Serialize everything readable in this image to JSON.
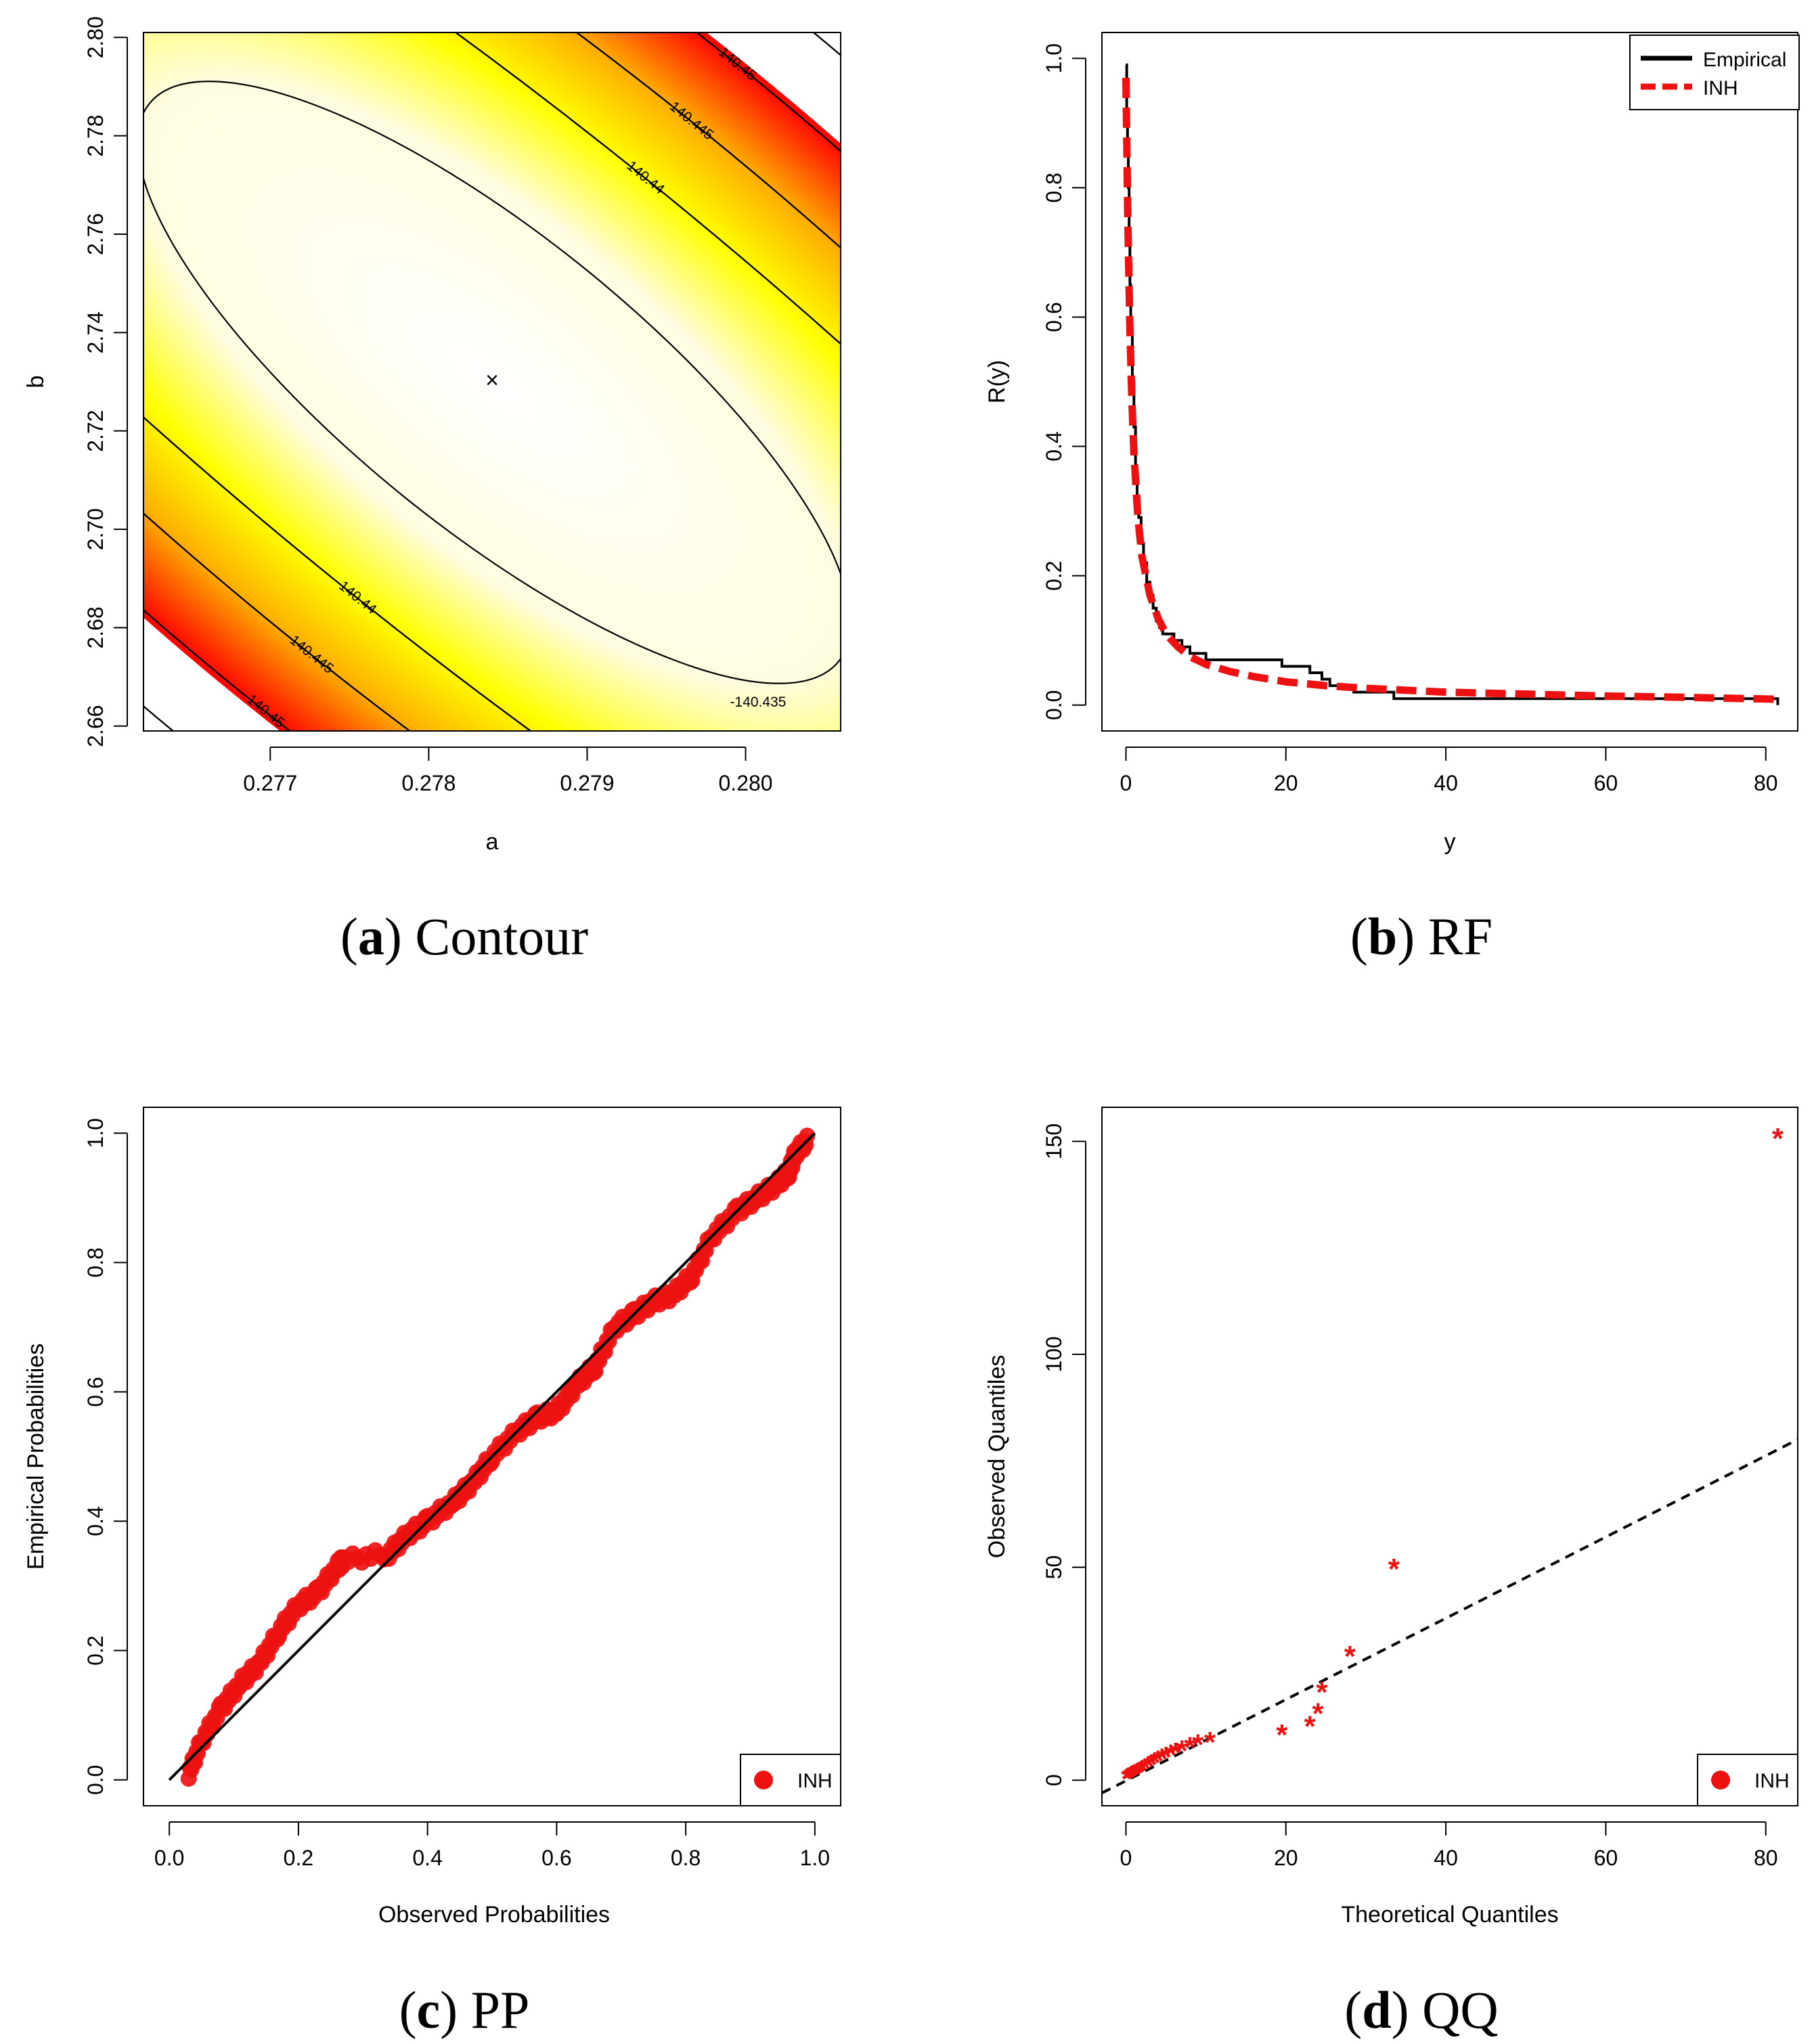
{
  "chart_data": [
    {
      "panel": "a",
      "type": "heatmap",
      "caption_letter": "a",
      "caption_text": "Contour",
      "xlabel": "a",
      "ylabel": "b",
      "xlim": [
        0.2762,
        0.2806
      ],
      "ylim": [
        2.659,
        2.801
      ],
      "xticks": [
        "0.277",
        "0.278",
        "0.279",
        "0.280"
      ],
      "yticks": [
        "2.66",
        "2.68",
        "2.70",
        "2.72",
        "2.74",
        "2.76",
        "2.78",
        "2.80"
      ],
      "mle_marker": "×",
      "mle_point": [
        0.2784,
        2.73
      ],
      "colors": {
        "low": "#ff0000",
        "mid": "#ffff00",
        "high": "#ffffff"
      },
      "contour_levels": [
        {
          "label": "-140.435",
          "ring": 0
        },
        {
          "label": "-140.44",
          "ring": 1
        },
        {
          "label": "-140.445",
          "ring": 2
        },
        {
          "label": "-140.45",
          "ring": 3
        },
        {
          "label": "-140.455",
          "ring": 4
        }
      ]
    },
    {
      "panel": "b",
      "type": "line",
      "caption_letter": "b",
      "caption_text": "RF",
      "xlabel": "y",
      "ylabel": "R(y)",
      "xlim": [
        -3,
        84
      ],
      "ylim": [
        -0.04,
        1.04
      ],
      "xticks": [
        0,
        20,
        40,
        60,
        80
      ],
      "yticks": [
        "0.0",
        "0.2",
        "0.4",
        "0.6",
        "0.8",
        "1.0"
      ],
      "legend": [
        "Empirical",
        "INH"
      ],
      "colors": {
        "empirical": "#000000",
        "inh": "#ee1111"
      },
      "series": [
        {
          "name": "Empirical",
          "style": "step",
          "x": [
            0,
            0.1,
            0.2,
            0.3,
            0.4,
            0.5,
            0.6,
            0.8,
            1.0,
            1.2,
            1.4,
            1.6,
            1.9,
            2.2,
            2.6,
            3.0,
            3.4,
            3.8,
            4.2,
            4.6,
            5.0,
            6.0,
            7.0,
            8.0,
            9.0,
            10.0,
            19.5,
            23.0,
            24.5,
            25.5,
            28.5,
            33.5,
            81.5
          ],
          "y": [
            0.99,
            0.92,
            0.86,
            0.8,
            0.72,
            0.65,
            0.58,
            0.5,
            0.43,
            0.37,
            0.32,
            0.29,
            0.25,
            0.22,
            0.19,
            0.17,
            0.15,
            0.13,
            0.12,
            0.11,
            0.11,
            0.1,
            0.09,
            0.08,
            0.08,
            0.07,
            0.06,
            0.05,
            0.04,
            0.03,
            0.02,
            0.01,
            0.0
          ]
        },
        {
          "name": "INH",
          "style": "dashed",
          "x": [
            0,
            0.25,
            0.5,
            0.75,
            1.0,
            1.5,
            2.0,
            3.0,
            4.0,
            5.0,
            6.5,
            8.0,
            10.0,
            13.0,
            16.0,
            20.0,
            25.0,
            30.0,
            40.0,
            50.0,
            60.0,
            70.0,
            81.5
          ],
          "y": [
            0.97,
            0.74,
            0.58,
            0.47,
            0.39,
            0.29,
            0.23,
            0.17,
            0.135,
            0.11,
            0.09,
            0.075,
            0.063,
            0.052,
            0.044,
            0.036,
            0.03,
            0.026,
            0.02,
            0.017,
            0.014,
            0.012,
            0.009
          ]
        }
      ]
    },
    {
      "panel": "c",
      "type": "scatter",
      "caption_letter": "c",
      "caption_text": "PP",
      "xlabel": "Observed Probabilities",
      "ylabel": "Empirical Probabilities",
      "xlim": [
        -0.04,
        1.04
      ],
      "ylim": [
        -0.04,
        1.04
      ],
      "xticks": [
        "0.0",
        "0.2",
        "0.4",
        "0.6",
        "0.8",
        "1.0"
      ],
      "yticks": [
        "0.0",
        "0.2",
        "0.4",
        "0.6",
        "0.8",
        "1.0"
      ],
      "legend": [
        "INH"
      ],
      "reference_line": [
        [
          0,
          0
        ],
        [
          1,
          1
        ]
      ],
      "path": [
        [
          0.03,
          0.01
        ],
        [
          0.05,
          0.06
        ],
        [
          0.08,
          0.11
        ],
        [
          0.11,
          0.15
        ],
        [
          0.14,
          0.18
        ],
        [
          0.17,
          0.23
        ],
        [
          0.2,
          0.27
        ],
        [
          0.23,
          0.29
        ],
        [
          0.26,
          0.33
        ],
        [
          0.27,
          0.34
        ],
        [
          0.34,
          0.35
        ],
        [
          0.37,
          0.38
        ],
        [
          0.4,
          0.4
        ],
        [
          0.44,
          0.43
        ],
        [
          0.47,
          0.46
        ],
        [
          0.5,
          0.5
        ],
        [
          0.54,
          0.54
        ],
        [
          0.57,
          0.56
        ],
        [
          0.6,
          0.57
        ],
        [
          0.63,
          0.61
        ],
        [
          0.66,
          0.64
        ],
        [
          0.69,
          0.7
        ],
        [
          0.72,
          0.72
        ],
        [
          0.75,
          0.74
        ],
        [
          0.78,
          0.75
        ],
        [
          0.81,
          0.78
        ],
        [
          0.84,
          0.84
        ],
        [
          0.88,
          0.88
        ],
        [
          0.91,
          0.9
        ],
        [
          0.94,
          0.92
        ],
        [
          0.96,
          0.94
        ],
        [
          0.97,
          0.97
        ],
        [
          0.99,
          0.99
        ]
      ]
    },
    {
      "panel": "d",
      "type": "scatter",
      "caption_letter": "d",
      "caption_text": "QQ",
      "xlabel": "Theoretical Quantiles",
      "ylabel": "Observed Quantiles",
      "xlim": [
        -3,
        84
      ],
      "ylim": [
        -6,
        158
      ],
      "xticks": [
        0,
        20,
        40,
        60,
        80
      ],
      "yticks": [
        0,
        50,
        100,
        150
      ],
      "legend": [
        "INH"
      ],
      "marker": "*",
      "reference_line": [
        [
          -3,
          -3
        ],
        [
          84,
          80
        ]
      ],
      "points": [
        [
          0.1,
          0.2
        ],
        [
          0.3,
          0.4
        ],
        [
          0.5,
          0.5
        ],
        [
          0.7,
          0.8
        ],
        [
          0.9,
          1.0
        ],
        [
          1.1,
          1.2
        ],
        [
          1.4,
          1.5
        ],
        [
          1.7,
          1.8
        ],
        [
          2.0,
          2.2
        ],
        [
          2.4,
          2.6
        ],
        [
          2.8,
          3.1
        ],
        [
          3.2,
          3.5
        ],
        [
          3.6,
          4.0
        ],
        [
          4.0,
          4.4
        ],
        [
          4.5,
          4.9
        ],
        [
          5.0,
          5.3
        ],
        [
          5.6,
          5.8
        ],
        [
          6.2,
          6.2
        ],
        [
          7.0,
          6.8
        ],
        [
          8.0,
          7.6
        ],
        [
          9.0,
          8.2
        ],
        [
          10.5,
          8.8
        ],
        [
          19.5,
          10.5
        ],
        [
          23.0,
          12.5
        ],
        [
          24.0,
          15.5
        ],
        [
          24.5,
          20.5
        ],
        [
          28.0,
          29.0
        ],
        [
          33.5,
          49.5
        ],
        [
          81.5,
          150.5
        ]
      ]
    }
  ]
}
